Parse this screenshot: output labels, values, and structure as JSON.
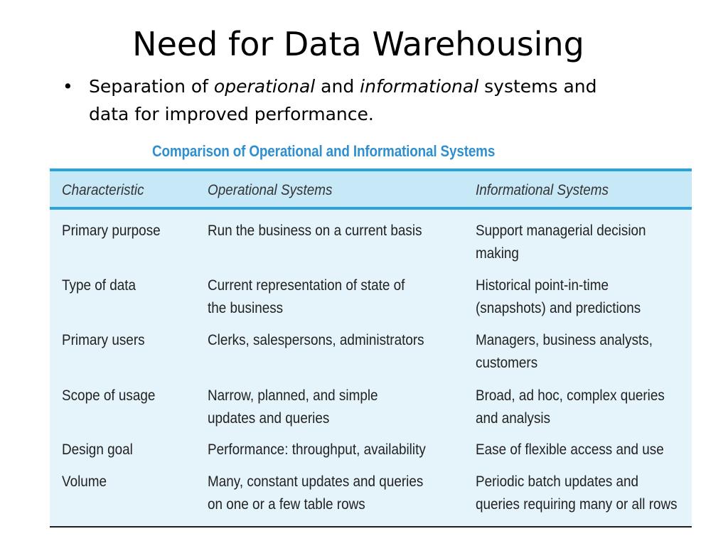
{
  "slide": {
    "title": "Need for Data Warehousing",
    "bullet": {
      "marker": "•",
      "part1": "Separation of ",
      "em1": "operational",
      "part2": " and ",
      "em2": "informational",
      "part3": " systems and",
      "line2": "data  for improved performance."
    }
  },
  "table": {
    "caption": "Comparison of Operational and Informational Systems",
    "headers": [
      "Characteristic",
      "Operational Systems",
      "Informational Systems"
    ],
    "rows": [
      {
        "c1": [
          "Primary purpose"
        ],
        "c2": [
          "Run the business on a current basis"
        ],
        "c3": [
          "Support managerial decision",
          "making"
        ]
      },
      {
        "c1": [
          "Type of data"
        ],
        "c2": [
          "Current representation of state of",
          "the business"
        ],
        "c3": [
          "Historical point-in-time",
          "(snapshots) and predictions"
        ]
      },
      {
        "c1": [
          "Primary users"
        ],
        "c2": [
          "Clerks, salespersons, administrators"
        ],
        "c3": [
          "Managers, business analysts,",
          "customers"
        ]
      },
      {
        "c1": [
          "Scope of usage"
        ],
        "c2": [
          "Narrow, planned, and simple",
          "updates and queries"
        ],
        "c3": [
          "Broad, ad hoc, complex queries",
          "and analysis"
        ]
      },
      {
        "c1": [
          "Design goal"
        ],
        "c2": [
          "Performance: throughput, availability"
        ],
        "c3": [
          "Ease of flexible access and use"
        ]
      },
      {
        "c1": [
          "Volume"
        ],
        "c2": [
          "Many, constant updates and queries",
          "on one or a few table rows"
        ],
        "c3": [
          "Periodic batch updates and",
          "queries requiring many or all rows"
        ]
      }
    ]
  }
}
